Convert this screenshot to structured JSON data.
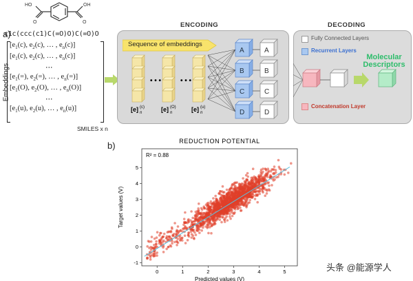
{
  "panel_a": {
    "label": "a)",
    "smiles": "c1c(ccc(c1)C(=O)O)C(=O)O",
    "axis_label": "Embeddings",
    "rows": [
      {
        "pre": "[e",
        "s1": "1",
        "mid": "(c), e",
        "s2": "2",
        "mid2": "(c), … , e",
        "s3": "n",
        "post": "(c)]"
      },
      {
        "pre": "[e",
        "s1": "1",
        "mid": "(c), e",
        "s2": "2",
        "mid2": "(c), … , e",
        "s3": "n",
        "post": "(c)]"
      },
      {
        "dots": "⋯"
      },
      {
        "pre": "[e",
        "s1": "1",
        "mid": "(=), e",
        "s2": "2",
        "mid2": "(=), … , e",
        "s3": "n",
        "post": "(=)]"
      },
      {
        "pre": "[e",
        "s1": "1",
        "mid": "(O), e",
        "s2": "2",
        "mid2": "(O), … , e",
        "s3": "n",
        "post": "(O)]"
      },
      {
        "dots": "⋯"
      },
      {
        "pre": "[e",
        "s1": "1",
        "mid": "(u), e",
        "s2": "2",
        "mid2": "(u), … , e",
        "s3": "n",
        "post": "(u)]"
      }
    ],
    "smiles_count": "SMILES x n",
    "encoding_title": "ENCODING",
    "decoding_title": "DECODING",
    "sequence_label": "Sequence of embeddings",
    "embed_labels": [
      "[e]",
      "[e]",
      "[e]"
    ],
    "embed_sub": [
      "n",
      "n",
      "n"
    ],
    "embed_sup": [
      "(c)",
      "(O)",
      "(u)"
    ],
    "dots_between": "• • •",
    "cube_letters": [
      "A",
      "B",
      "C",
      "D"
    ],
    "legend": {
      "fully_connected": "Fully Connected Layers",
      "recurrent": "Recurrent Layers",
      "concatenation": "Concatenation Layer"
    },
    "output_label_line1": "Molecular",
    "output_label_line2": "Descriptors",
    "colors": {
      "embed_fill": "#f5e6a8",
      "recurrent_fill": "#a9c8f0",
      "fc_fill": "#ffffff",
      "concat_fill": "#f7b7bf",
      "output_fill": "#b4ecc8",
      "arrow_fill": "#b8d86b",
      "encoding_bg": "#d9d9d9",
      "decoding_bg": "#dcdcdc",
      "title_green": "#2ebd6b",
      "recurrent_text": "#3a6fd1",
      "concat_text": "#c0392b"
    }
  },
  "panel_b": {
    "label": "b)",
    "chart_data": {
      "type": "scatter",
      "title": "REDUCTION POTENTIAL",
      "xlabel": "Predicted values (V)",
      "ylabel": "Target values (V)",
      "annotation": "R² = 0.88",
      "xlim": [
        -0.6,
        5.5
      ],
      "ylim": [
        -1.2,
        6.2
      ],
      "xticks": [
        0,
        1,
        2,
        3,
        4,
        5
      ],
      "yticks": [
        -1,
        0,
        1,
        2,
        3,
        4,
        5
      ],
      "fit_line": [
        [
          -0.5,
          -0.6
        ],
        [
          5.2,
          5.05
        ]
      ],
      "point_color": "#e0402a",
      "line_color": "#5bc0de",
      "n_points": 1800,
      "trend": {
        "slope": 1.0,
        "intercept": 0.0,
        "center": 2.9,
        "spread_x": 0.75,
        "noise": 0.38
      }
    }
  },
  "watermark": "头条 @能源学人"
}
